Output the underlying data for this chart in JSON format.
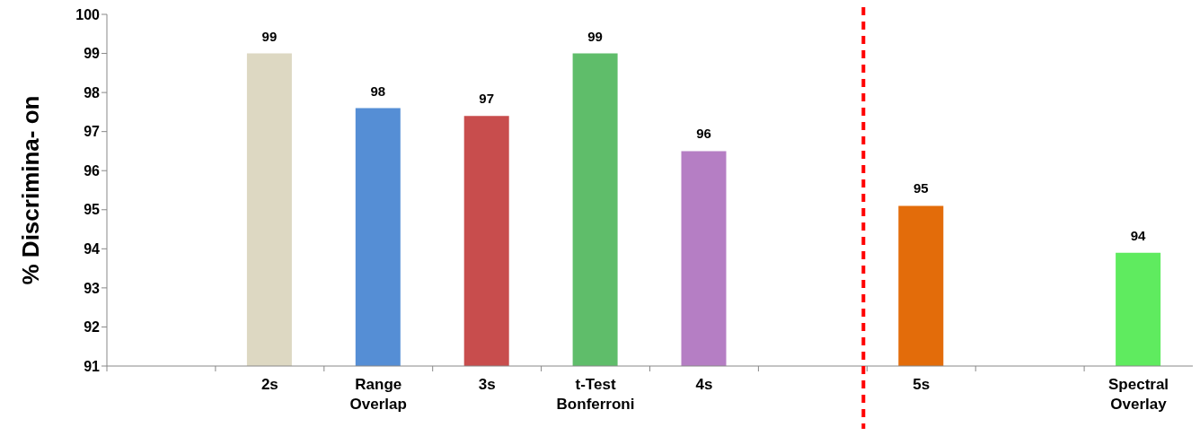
{
  "chart_data": {
    "type": "bar",
    "ylabel": "% Discrimina- on",
    "categories": [
      null,
      "2s",
      "Range Overlap",
      "3s",
      "t-Test Bonferroni",
      "4s",
      null,
      "5s",
      null,
      "Spectral Overlay"
    ],
    "values": [
      null,
      99.0,
      97.6,
      97.4,
      99.0,
      96.5,
      null,
      95.1,
      null,
      93.9
    ],
    "colors": [
      "#dddddd",
      "#ddd8c2",
      "#558ed5",
      "#c84d4d",
      "#5fbd6a",
      "#b57ec4",
      "#dddddd",
      "#e36c0a",
      "#dddddd",
      "#5feb5f"
    ],
    "value_labels": [
      null,
      "99",
      "98",
      "97",
      "99",
      "96",
      null,
      "95",
      null,
      "94"
    ],
    "ylim": [
      91,
      100
    ],
    "yticks": [
      91,
      92,
      93,
      94,
      95,
      96,
      97,
      98,
      99,
      100
    ],
    "grid": false,
    "legend": false,
    "ref_lines": [
      {
        "axis": "x",
        "value": "5s",
        "color": "#ff0000",
        "line_style": "dashed"
      }
    ]
  }
}
